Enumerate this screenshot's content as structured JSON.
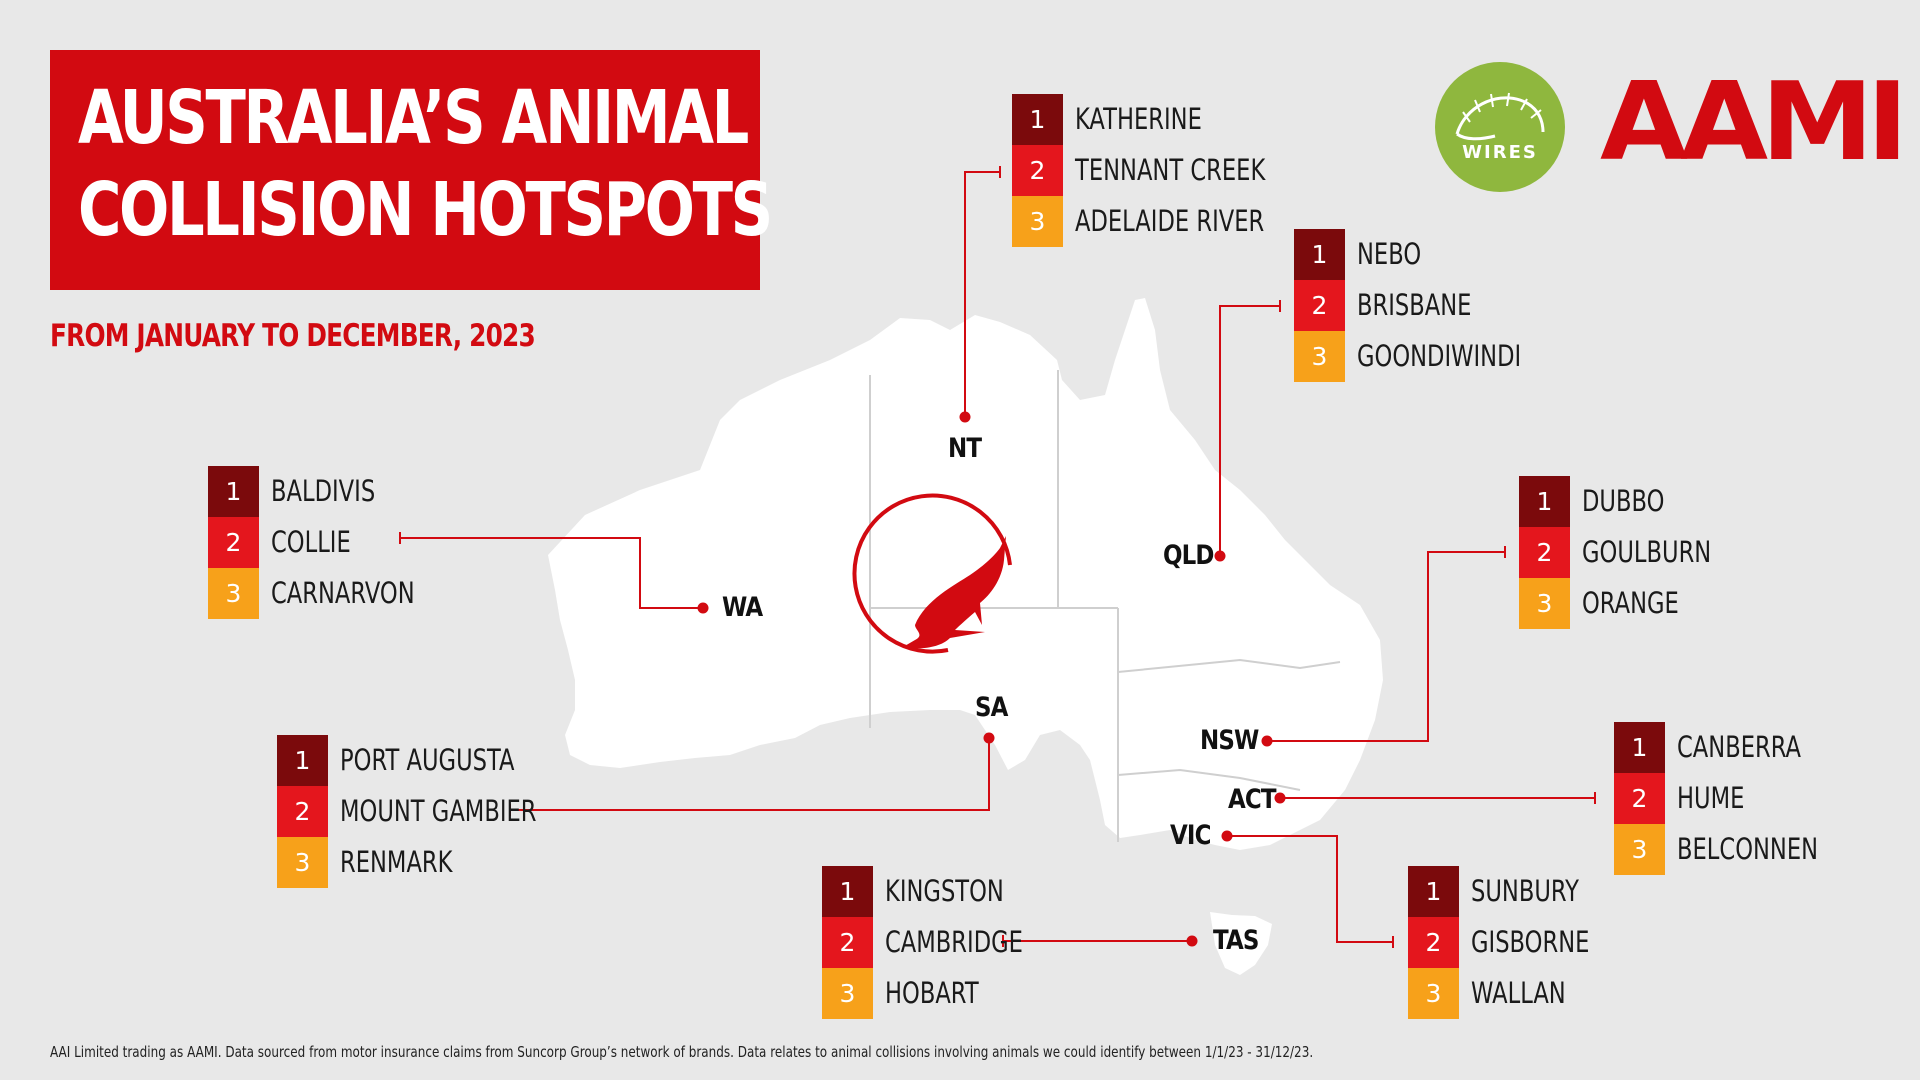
{
  "title": {
    "line1": "AUSTRALIA’S ANIMAL",
    "line2": "COLLISION HOTSPOTS"
  },
  "subtitle": "FROM JANUARY TO DECEMBER, 2023",
  "logos": {
    "wires": "WIRES",
    "aami": "AAMI"
  },
  "colors": {
    "brand_red": "#d20a11",
    "rank1": "#7b0a0c",
    "rank2": "#e4161d",
    "rank3": "#f7a11a",
    "wires_green": "#8fb73e"
  },
  "center_icon": "kangaroo-icon",
  "states": [
    {
      "code": "NT",
      "hotspots": [
        "KATHERINE",
        "TENNANT CREEK",
        "ADELAIDE RIVER"
      ]
    },
    {
      "code": "QLD",
      "hotspots": [
        "NEBO",
        "BRISBANE",
        "GOONDIWINDI"
      ]
    },
    {
      "code": "WA",
      "hotspots": [
        "BALDIVIS",
        "COLLIE",
        "CARNARVON"
      ]
    },
    {
      "code": "NSW",
      "hotspots": [
        "DUBBO",
        "GOULBURN",
        "ORANGE"
      ]
    },
    {
      "code": "SA",
      "hotspots": [
        "PORT AUGUSTA",
        "MOUNT GAMBIER",
        "RENMARK"
      ]
    },
    {
      "code": "ACT",
      "hotspots": [
        "CANBERRA",
        "HUME",
        "BELCONNEN"
      ]
    },
    {
      "code": "TAS",
      "hotspots": [
        "KINGSTON",
        "CAMBRIDGE",
        "HOBART"
      ]
    },
    {
      "code": "VIC",
      "hotspots": [
        "SUNBURY",
        "GISBORNE",
        "WALLAN"
      ]
    }
  ],
  "footnote": "AAI Limited trading as AAMI. Data sourced from motor insurance claims from Suncorp Group’s network of brands. Data relates to animal collisions involving animals we could identify between 1/1/23 - 31/12/23."
}
